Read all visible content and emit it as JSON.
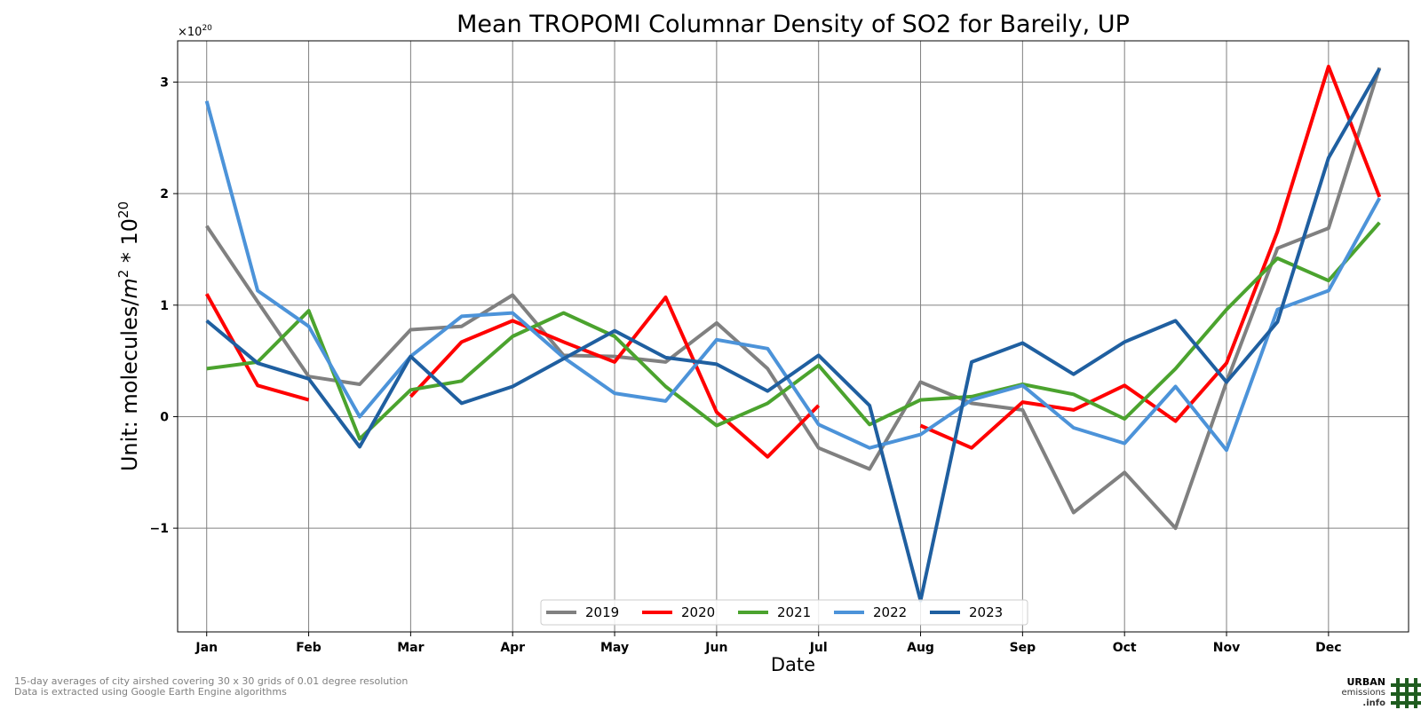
{
  "chart_data": {
    "type": "line",
    "title": "Mean TROPOMI Columnar Density of SO2 for Bareily, UP",
    "xlabel": "Date",
    "ylabel": "Unit: molecules/m² * 10²⁰",
    "ylabel_parts": {
      "prefix": "Unit: molecules/",
      "m": "m",
      "m_exp": "2",
      "mid": " * 10",
      "exp": "20"
    },
    "y_offset_text": {
      "base": "×10",
      "exp": "20"
    },
    "x_points": [
      "Jan",
      "Jan 15",
      "Feb",
      "Feb 15",
      "Mar",
      "Mar 15",
      "Apr",
      "Apr 15",
      "May",
      "May 15",
      "Jun",
      "Jun 15",
      "Jul",
      "Jul 15",
      "Aug",
      "Aug 15",
      "Sep",
      "Sep 15",
      "Oct",
      "Oct 15",
      "Nov",
      "Nov 15",
      "Dec",
      "Dec 15"
    ],
    "x_ticks": [
      "Jan",
      "Feb",
      "Mar",
      "Apr",
      "May",
      "Jun",
      "Jul",
      "Aug",
      "Sep",
      "Oct",
      "Nov",
      "Dec"
    ],
    "y_ticks": [
      -1,
      0,
      1,
      2,
      3
    ],
    "y_tick_labels": [
      "−1",
      "0",
      "1",
      "2",
      "3"
    ],
    "xlim": [
      -0.57,
      23.57
    ],
    "ylim": [
      -1.93,
      3.37
    ],
    "grid": true,
    "legend_position": "bottom-center",
    "series": [
      {
        "name": "2019",
        "color": "#808080",
        "values": [
          1.71,
          1.03,
          0.36,
          0.29,
          0.78,
          0.81,
          1.09,
          0.55,
          0.54,
          0.49,
          0.84,
          0.43,
          -0.28,
          -0.47,
          0.31,
          0.12,
          0.06,
          -0.86,
          -0.5,
          -1.0,
          0.31,
          1.51,
          1.69,
          3.13
        ]
      },
      {
        "name": "2020",
        "color": "#ff0000",
        "values": [
          1.1,
          0.28,
          0.15,
          null,
          0.18,
          0.67,
          0.86,
          0.67,
          0.49,
          1.07,
          0.04,
          -0.36,
          0.1,
          null,
          -0.08,
          -0.28,
          0.13,
          0.06,
          0.28,
          -0.04,
          0.48,
          1.66,
          3.14,
          1.97
        ]
      },
      {
        "name": "2021",
        "color": "#4ba32e",
        "values": [
          0.43,
          0.49,
          0.95,
          -0.2,
          0.24,
          0.32,
          0.72,
          0.93,
          0.72,
          0.27,
          -0.08,
          0.12,
          0.46,
          -0.07,
          0.15,
          0.18,
          0.29,
          0.2,
          -0.02,
          0.43,
          0.96,
          1.42,
          1.22,
          1.74
        ]
      },
      {
        "name": "2022",
        "color": "#4c93d9",
        "values": [
          2.83,
          1.13,
          0.81,
          0.0,
          0.54,
          0.9,
          0.93,
          0.53,
          0.21,
          0.14,
          0.69,
          0.61,
          -0.07,
          -0.28,
          -0.16,
          0.15,
          0.28,
          -0.1,
          -0.24,
          0.27,
          -0.3,
          0.96,
          1.13,
          1.96
        ]
      },
      {
        "name": "2023",
        "color": "#1f5fa0",
        "values": [
          0.86,
          0.48,
          0.34,
          -0.27,
          0.54,
          0.12,
          0.27,
          0.52,
          0.77,
          0.53,
          0.47,
          0.23,
          0.55,
          0.1,
          -1.65,
          0.49,
          0.66,
          0.38,
          0.67,
          0.86,
          0.31,
          0.85,
          2.32,
          3.12
        ]
      }
    ]
  },
  "footnotes": [
    "15-day averages of city airshed covering 30 x 30 grids of 0.01 degree resolution",
    "Data is extracted using Google Earth Engine algorithms"
  ],
  "logo": {
    "line1": "URBAN",
    "line2": "emissions",
    "line3": ".info",
    "color": "#1f5c1f"
  }
}
